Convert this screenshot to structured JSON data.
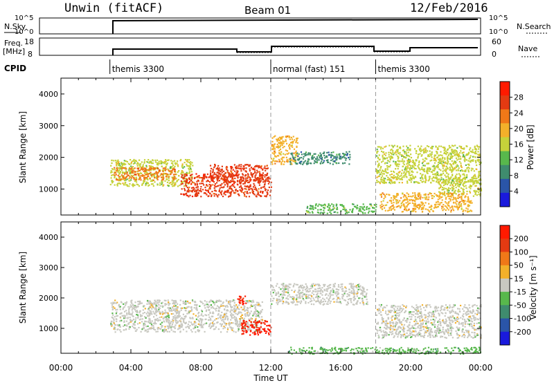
{
  "header": {
    "station": "Unwin (fitACF)",
    "beam": "Beam 01",
    "date": "12/Feb/2016"
  },
  "top_panels": {
    "nsky_label": "N.Sky",
    "nsky_ticks": [
      "10^5",
      "10^0"
    ],
    "nsearch_label": "N.Search",
    "nsearch_ticks": [
      "10^5",
      "10^0"
    ],
    "freq_label": "Freq.",
    "freq_unit": "[MHz]",
    "freq_ticks": [
      "18",
      "8"
    ],
    "nave_label": "Nave",
    "nave_ticks": [
      "60",
      "0"
    ],
    "cpid_label": "CPID",
    "cpid_segments": [
      {
        "start_hour": 2.8,
        "label": "themis 3300"
      },
      {
        "start_hour": 12.0,
        "label": "normal (fast) 151"
      },
      {
        "start_hour": 18.0,
        "label": "themis 3300"
      }
    ]
  },
  "chart_data": [
    {
      "type": "heatmap",
      "name": "power-panel",
      "ylabel": "Slant Range [km]",
      "ylim": [
        180,
        4500
      ],
      "yticks": [
        "1000",
        "2000",
        "3000",
        "4000"
      ],
      "ytick_values": [
        1000,
        2000,
        3000,
        4000
      ],
      "colorbar_label": "Power [dB]",
      "colorbar_ticks": [
        "4",
        "8",
        "12",
        "16",
        "20",
        "24",
        "28"
      ],
      "colorbar_tick_values": [
        4,
        8,
        12,
        16,
        20,
        24,
        28
      ],
      "colorbar_range": [
        0,
        32
      ],
      "colors": [
        "#1a1adc",
        "#2a55a8",
        "#3f8c6e",
        "#58b84c",
        "#c6d23a",
        "#f3b02a",
        "#f07818",
        "#e43a12",
        "#ff1a00"
      ],
      "regions": [
        {
          "t0": 2.8,
          "t1": 7.5,
          "r0": 1100,
          "r1": 1950,
          "level": 16
        },
        {
          "t0": 3.0,
          "t1": 6.5,
          "r0": 1300,
          "r1": 1700,
          "level": 22
        },
        {
          "t0": 6.8,
          "t1": 12.0,
          "r0": 780,
          "r1": 1500,
          "level": 27
        },
        {
          "t0": 8.5,
          "t1": 11.8,
          "r0": 1200,
          "r1": 1800,
          "level": 26
        },
        {
          "t0": 12.0,
          "t1": 13.5,
          "r0": 1800,
          "r1": 2700,
          "level": 18
        },
        {
          "t0": 13.0,
          "t1": 16.5,
          "r0": 1800,
          "r1": 2200,
          "level": 9
        },
        {
          "t0": 18.0,
          "t1": 24.0,
          "r0": 1200,
          "r1": 2400,
          "level": 16
        },
        {
          "t0": 21.5,
          "t1": 24.0,
          "r0": 800,
          "r1": 1400,
          "level": 14
        },
        {
          "t0": 18.2,
          "t1": 23.5,
          "r0": 300,
          "r1": 900,
          "level": 20
        },
        {
          "t0": 14.0,
          "t1": 18.0,
          "r0": 250,
          "r1": 550,
          "level": 12
        }
      ]
    },
    {
      "type": "heatmap",
      "name": "velocity-panel",
      "ylabel": "Slant Range [km]",
      "ylim": [
        180,
        4500
      ],
      "yticks": [
        "1000",
        "2000",
        "3000",
        "4000"
      ],
      "ytick_values": [
        1000,
        2000,
        3000,
        4000
      ],
      "xlabel": "Time UT",
      "xticks": [
        "00:00",
        "04:00",
        "08:00",
        "12:00",
        "16:00",
        "20:00",
        "00:00"
      ],
      "xtick_hours": [
        0,
        4,
        8,
        12,
        16,
        20,
        24
      ],
      "colorbar_label": "Velocity [m s⁻¹]",
      "colorbar_ticks": [
        "200",
        "100",
        "50",
        "15",
        "-15",
        "-50",
        "-100",
        "-200"
      ],
      "colors": [
        "#1a1adc",
        "#2a55a8",
        "#3f8c6e",
        "#58b84c",
        "#c8c8c0",
        "#f3b02a",
        "#f07818",
        "#e43a12",
        "#ff1a00"
      ],
      "regions": [
        {
          "t0": 2.8,
          "t1": 11.5,
          "r0": 900,
          "r1": 1950,
          "vel": 0
        },
        {
          "t0": 10.3,
          "t1": 12.0,
          "r0": 800,
          "r1": 1300,
          "vel": -210
        },
        {
          "t0": 10.0,
          "t1": 10.6,
          "r0": 1800,
          "r1": 2100,
          "vel": -210
        },
        {
          "t0": 12.0,
          "t1": 17.5,
          "r0": 1800,
          "r1": 2500,
          "vel": 0
        },
        {
          "t0": 18.0,
          "t1": 24.0,
          "r0": 700,
          "r1": 1800,
          "vel": 0
        },
        {
          "t0": 13.0,
          "t1": 24.0,
          "r0": 180,
          "r1": 400,
          "vel": 30
        }
      ]
    }
  ]
}
